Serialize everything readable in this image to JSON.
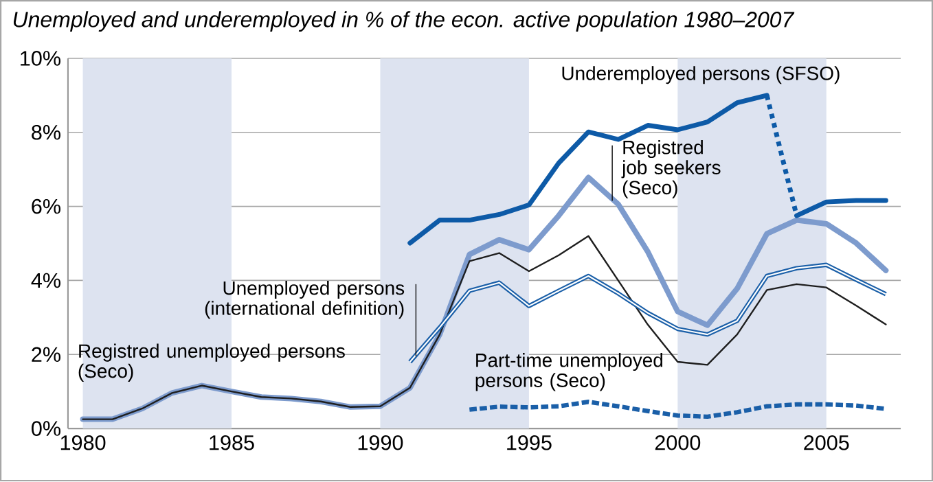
{
  "chart_data": {
    "type": "line",
    "title": "Unemployed and underemployed in % of the econ. active population 1980–2007",
    "xlim": [
      1979.5,
      2007.5
    ],
    "xticks": [
      1980,
      1985,
      1990,
      1995,
      2000,
      2005
    ],
    "ylim": [
      0,
      10
    ],
    "yticks": [
      {
        "value": 0,
        "label": "0%"
      },
      {
        "value": 2,
        "label": "2%"
      },
      {
        "value": 4,
        "label": "4%"
      },
      {
        "value": 6,
        "label": "6%"
      },
      {
        "value": 8,
        "label": "8%"
      },
      {
        "value": 10,
        "label": "10%"
      }
    ],
    "grid": "y",
    "bands": [
      {
        "axis": "x",
        "from": 1980,
        "to": 1985,
        "color": "#dde3f0"
      },
      {
        "axis": "x",
        "from": 1990,
        "to": 1995,
        "color": "#dde3f0"
      },
      {
        "axis": "x",
        "from": 2000,
        "to": 2005,
        "color": "#dde3f0"
      }
    ],
    "series": [
      {
        "name": "Registred job seekers (Seco)",
        "color": "#7d9bcd",
        "x": [
          1980,
          1981,
          1982,
          1983,
          1984,
          1985,
          1986,
          1987,
          1988,
          1989,
          1990,
          1991,
          1992,
          1993,
          1994,
          1995,
          1996,
          1997,
          1998,
          1999,
          2000,
          2001,
          2002,
          2003,
          2004,
          2005,
          2006,
          2007
        ],
        "values": [
          0.25,
          0.25,
          0.54,
          0.96,
          1.16,
          1.0,
          0.85,
          0.81,
          0.73,
          0.58,
          0.6,
          1.1,
          2.54,
          4.7,
          5.1,
          4.83,
          5.75,
          6.78,
          6.06,
          4.77,
          3.16,
          2.79,
          3.78,
          5.26,
          5.63,
          5.53,
          5.01,
          4.27
        ]
      },
      {
        "name": "Registred unemployed persons (Seco)",
        "color": "#1e1e1e",
        "x": [
          1980,
          1981,
          1982,
          1983,
          1984,
          1985,
          1986,
          1987,
          1988,
          1989,
          1990,
          1991,
          1992,
          1993,
          1994,
          1995,
          1996,
          1997,
          1998,
          1999,
          2000,
          2001,
          2002,
          2003,
          2004,
          2005,
          2006,
          2007
        ],
        "values": [
          0.25,
          0.25,
          0.54,
          0.96,
          1.16,
          1.0,
          0.85,
          0.81,
          0.73,
          0.58,
          0.6,
          1.1,
          2.54,
          4.52,
          4.74,
          4.25,
          4.68,
          5.2,
          4.0,
          2.8,
          1.8,
          1.72,
          2.54,
          3.74,
          3.9,
          3.81,
          3.32,
          2.81
        ]
      },
      {
        "name": "Unemployed persons (international definition)",
        "color": "#1a5fa8",
        "x": [
          1991,
          1992,
          1993,
          1994,
          1995,
          1996,
          1997,
          1998,
          1999,
          2000,
          2001,
          2002,
          2003,
          2004,
          2005,
          2006,
          2007
        ],
        "values": [
          1.8,
          2.73,
          3.72,
          3.94,
          3.31,
          3.72,
          4.12,
          3.65,
          3.12,
          2.69,
          2.54,
          2.91,
          4.12,
          4.33,
          4.42,
          4.02,
          3.63
        ]
      },
      {
        "name": "Part-time unemployed persons (Seco)",
        "color": "#1a5fa8",
        "line_style": "dashed",
        "x": [
          1993,
          1994,
          1995,
          1996,
          1997,
          1998,
          1999,
          2000,
          2001,
          2002,
          2003,
          2004,
          2005,
          2006,
          2007
        ],
        "values": [
          0.51,
          0.59,
          0.57,
          0.6,
          0.72,
          0.6,
          0.47,
          0.35,
          0.32,
          0.44,
          0.6,
          0.65,
          0.65,
          0.62,
          0.53
        ]
      },
      {
        "name": "Underemployed persons (SFSO)",
        "color": "#0d5aa7",
        "x": [
          1991,
          1992,
          1993,
          1994,
          1995,
          1996,
          1997,
          1998,
          1999,
          2000,
          2001,
          2002,
          2003
        ],
        "values": [
          5.01,
          5.63,
          5.63,
          5.78,
          6.04,
          7.17,
          8.01,
          7.81,
          8.19,
          8.07,
          8.28,
          8.8,
          9.0
        ]
      },
      {
        "color": "#0d5aa7",
        "line_style": "dotted",
        "x": [
          2003,
          2004
        ],
        "values": [
          9.0,
          5.75
        ]
      },
      {
        "color": "#0d5aa7",
        "x": [
          2004,
          2005,
          2006,
          2007
        ],
        "values": [
          5.75,
          6.12,
          6.16,
          6.16
        ]
      }
    ]
  }
}
